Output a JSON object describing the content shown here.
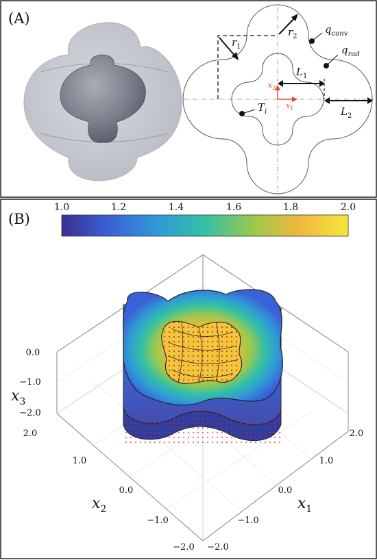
{
  "panel_a": {
    "label": "(A)",
    "annotations": {
      "r1": "r",
      "r1_sub": "1",
      "r2": "r",
      "r2_sub": "2",
      "q_conv": "q",
      "q_conv_sub": "conv",
      "q_rad": "q",
      "q_rad_sub": "rad",
      "L1": "L",
      "L1_sub": "1",
      "L2": "L",
      "L2_sub": "2",
      "Ti": "T",
      "Ti_sub": "i",
      "x1": "x",
      "x1_sub": "1",
      "x2": "x",
      "x2_sub": "2"
    }
  },
  "panel_b": {
    "label": "(B)",
    "colorbar": {
      "ticks": [
        "1.0",
        "1.2",
        "1.4",
        "1.6",
        "1.8",
        "2.0"
      ],
      "colors": [
        "#3b2f8f",
        "#3a62d8",
        "#2f9bd6",
        "#34c0a5",
        "#9bc94e",
        "#f0b83c",
        "#f5e63b"
      ]
    },
    "axes": {
      "x3_label": "x",
      "x3_sub": "3",
      "x2_label": "x",
      "x2_sub": "2",
      "x1_label": "x",
      "x1_sub": "1",
      "x3_ticks": [
        "0.0",
        "−1.0",
        "−2.0"
      ],
      "x2_ticks": [
        "2.0",
        "1.0",
        "0.0",
        "−1.0",
        "−2.0"
      ],
      "x1_ticks": [
        "−2.0",
        "−1.0",
        "0.0",
        "1.0",
        "2.0"
      ]
    }
  }
}
